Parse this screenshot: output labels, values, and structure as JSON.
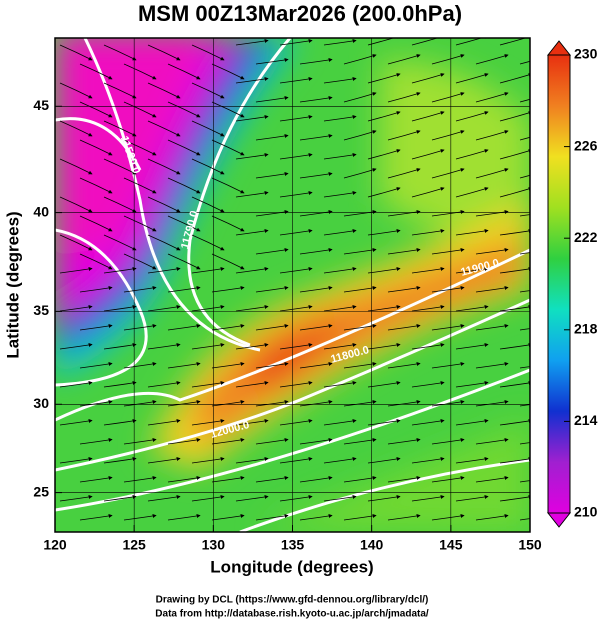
{
  "chart_data": {
    "type": "contour",
    "title": "MSM 00Z13Mar2026 (200.0hPa)",
    "x_label": "Longitude (degrees)",
    "y_label": "Latitude  (degrees)",
    "xlim": [
      120,
      150
    ],
    "xticks": [
      120,
      125,
      130,
      135,
      140,
      145,
      150
    ],
    "ylim": [
      22.7,
      48
    ],
    "yticks": [
      25,
      30,
      35,
      40,
      45
    ],
    "projection": "mercator",
    "grid": true,
    "colorbar": {
      "lim": [
        210,
        230
      ],
      "ticks": [
        210,
        214,
        218,
        222,
        226,
        230
      ],
      "colormap": [
        "#e000e0",
        "#a020d0",
        "#1030d0",
        "#10a0f0",
        "#10e0c0",
        "#30d040",
        "#a0e020",
        "#f0e020",
        "#f08020",
        "#e83010"
      ]
    },
    "contour_labels": [
      "11590.0",
      "11790.0",
      "11800.0",
      "11900.0",
      "12000.0"
    ],
    "footer": [
      "Drawing by DCL (https://www.gfd-dennou.org/library/dcl/)",
      "Data from http://database.rish.kyoto-u.ac.jp/arch/jmadata/"
    ]
  }
}
